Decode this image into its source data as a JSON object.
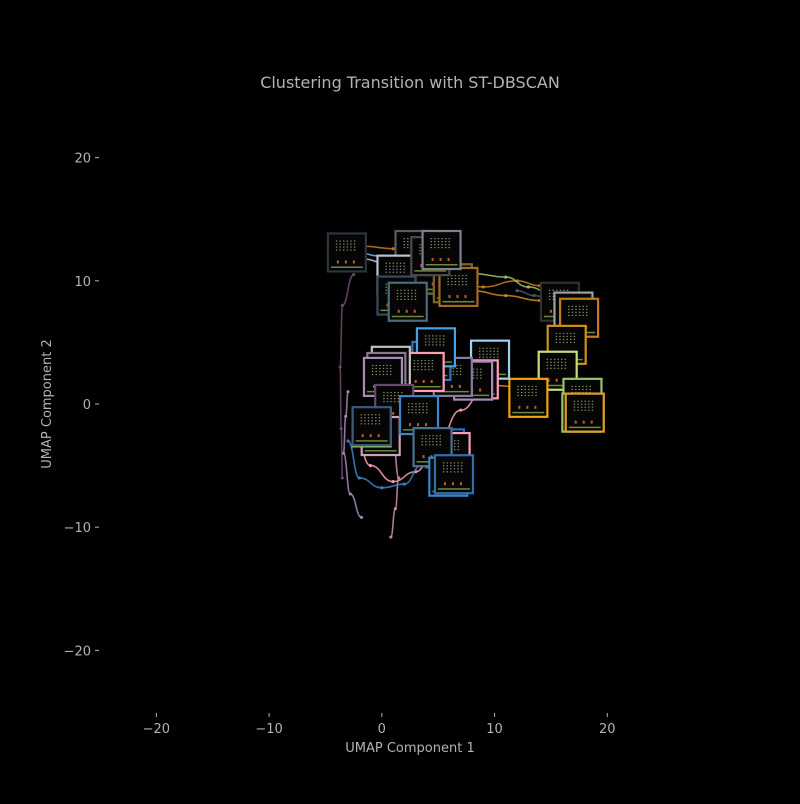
{
  "chart_data": {
    "type": "scatter",
    "title": "Clustering Transition with ST-DBSCAN",
    "xlabel": "UMAP Component 1",
    "ylabel": "UMAP Component 2",
    "xlim": [
      -25,
      30
    ],
    "ylim": [
      -25,
      25
    ],
    "xticks": [
      -20,
      -10,
      0,
      10,
      20
    ],
    "yticks": [
      -20,
      -10,
      0,
      10,
      20
    ],
    "xtick_labels": [
      "−20",
      "−10",
      "0",
      "10",
      "20"
    ],
    "ytick_labels": [
      "−20",
      "−10",
      "0",
      "10",
      "20"
    ],
    "grid": false,
    "background": "#000000",
    "text_color": "#b3b3b3",
    "tick_color": "#b3b3b3",
    "trajectories": [
      {
        "color": "#c27c1e",
        "points": [
          [
            -1.5,
            12.8
          ],
          [
            1,
            12.6
          ],
          [
            3,
            11.5
          ],
          [
            6,
            10
          ],
          [
            9,
            9.5
          ],
          [
            12,
            10
          ],
          [
            14,
            9.6
          ],
          [
            17,
            9.2
          ]
        ]
      },
      {
        "color": "#d18a1a",
        "points": [
          [
            2,
            9.8
          ],
          [
            5,
            9.6
          ],
          [
            8,
            9.2
          ],
          [
            11,
            8.8
          ],
          [
            14,
            8.4
          ],
          [
            16,
            7.5
          ]
        ]
      },
      {
        "color": "#9bc26a",
        "points": [
          [
            5,
            10.5
          ],
          [
            8,
            10.6
          ],
          [
            11,
            10.3
          ],
          [
            13,
            9.5
          ],
          [
            15,
            9
          ]
        ]
      },
      {
        "color": "#aec7e8",
        "points": [
          [
            -2,
            11.8
          ],
          [
            1,
            11.3
          ],
          [
            3,
            11
          ],
          [
            5,
            10.6
          ]
        ]
      },
      {
        "color": "#8cb0d4",
        "points": [
          [
            -3,
            12.5
          ],
          [
            0,
            12
          ],
          [
            2,
            11.2
          ],
          [
            4,
            10.2
          ]
        ]
      },
      {
        "color": "#e8833a",
        "points": [
          [
            8,
            1.6
          ],
          [
            10,
            1.5
          ],
          [
            12,
            1.4
          ],
          [
            14,
            1.2
          ]
        ]
      },
      {
        "color": "#f2a23c",
        "points": [
          [
            15,
            5.5
          ],
          [
            16.5,
            3
          ],
          [
            16.2,
            0.5
          ],
          [
            16.5,
            -1.5
          ]
        ]
      },
      {
        "color": "#ff9eb5",
        "points": [
          [
            -2.5,
            -2
          ],
          [
            -1,
            -5
          ],
          [
            1,
            -6.3
          ],
          [
            3,
            -5.5
          ],
          [
            5,
            -3
          ],
          [
            7,
            -0.5
          ],
          [
            9,
            1
          ]
        ]
      },
      {
        "color": "#d08fb0",
        "points": [
          [
            0.5,
            0
          ],
          [
            1,
            -3
          ],
          [
            1.5,
            -6
          ],
          [
            1.2,
            -8.5
          ],
          [
            0.8,
            -10.8
          ]
        ]
      },
      {
        "color": "#3a86c8",
        "points": [
          [
            -3,
            -3
          ],
          [
            -2,
            -6
          ],
          [
            0,
            -6.8
          ],
          [
            2,
            -6.5
          ],
          [
            3.5,
            -5
          ]
        ]
      },
      {
        "color": "#2e6fb0",
        "points": [
          [
            3,
            -2
          ],
          [
            4.5,
            -4
          ],
          [
            6,
            -5.5
          ],
          [
            7,
            -6.5
          ]
        ]
      },
      {
        "color": "#a78cb8",
        "points": [
          [
            -3,
            1
          ],
          [
            -3.2,
            -1
          ],
          [
            -3.4,
            -4
          ],
          [
            -2.8,
            -7.3
          ],
          [
            -1.8,
            -9.2
          ]
        ]
      },
      {
        "color": "#6e4b6e",
        "points": [
          [
            -2.5,
            10.5
          ],
          [
            -3.5,
            8
          ],
          [
            -3.7,
            3
          ],
          [
            -3.6,
            -2
          ],
          [
            -3.5,
            -6
          ]
        ]
      },
      {
        "color": "#4a5a6a",
        "points": [
          [
            12,
            9.2
          ],
          [
            13.5,
            8.8
          ],
          [
            15.5,
            8.2
          ],
          [
            17.5,
            7.6
          ]
        ]
      }
    ],
    "thumbnails": [
      {
        "x": -3.1,
        "y": 12.3,
        "border": "#2b3440"
      },
      {
        "x": 2.9,
        "y": 12.5,
        "border": "#5a5a6a"
      },
      {
        "x": 3.9,
        "y": 10.5,
        "border": "#6b6b3a"
      },
      {
        "x": 1.3,
        "y": 10.5,
        "border": "#c0c0d0"
      },
      {
        "x": 6.3,
        "y": 9.8,
        "border": "#7a6430"
      },
      {
        "x": 6.8,
        "y": 9.5,
        "border": "#a56a20"
      },
      {
        "x": 4.3,
        "y": 12.0,
        "border": "#4a4a4a"
      },
      {
        "x": 5.3,
        "y": 12.5,
        "border": "#7f7f8f"
      },
      {
        "x": 1.3,
        "y": 8.8,
        "border": "#3a4a5a"
      },
      {
        "x": 2.3,
        "y": 8.3,
        "border": "#4c6a7a"
      },
      {
        "x": 15.8,
        "y": 8.3,
        "border": "#303030"
      },
      {
        "x": 17.0,
        "y": 7.5,
        "border": "#a0a0a0"
      },
      {
        "x": 17.5,
        "y": 7.0,
        "border": "#c27c1e"
      },
      {
        "x": 16.4,
        "y": 4.8,
        "border": "#d0901a"
      },
      {
        "x": 15.6,
        "y": 2.7,
        "border": "#c5e07a"
      },
      {
        "x": 17.8,
        "y": 0.5,
        "border": "#9bc26a"
      },
      {
        "x": 17.7,
        "y": -0.7,
        "border": "#9bc26a"
      },
      {
        "x": 18.0,
        "y": -0.7,
        "border": "#e0a020"
      },
      {
        "x": 13.0,
        "y": 0.5,
        "border": "#f0a010"
      },
      {
        "x": 9.6,
        "y": 3.6,
        "border": "#a0d0f0"
      },
      {
        "x": 8.6,
        "y": 2.0,
        "border": "#ff9eb5"
      },
      {
        "x": 8.1,
        "y": 1.9,
        "border": "#a78cb8"
      },
      {
        "x": 6.3,
        "y": 2.2,
        "border": "#8c7aa0"
      },
      {
        "x": 4.4,
        "y": 3.5,
        "border": "#2a7ac0"
      },
      {
        "x": 4.8,
        "y": 4.6,
        "border": "#4aa0e0"
      },
      {
        "x": 3.8,
        "y": 2.6,
        "border": "#ff9eb5"
      },
      {
        "x": 0.8,
        "y": 3.1,
        "border": "#c0c0c0"
      },
      {
        "x": 0.4,
        "y": 2.6,
        "border": "#8a7a8a"
      },
      {
        "x": 0.1,
        "y": 2.2,
        "border": "#a78cb8"
      },
      {
        "x": 1.1,
        "y": 0.0,
        "border": "#6a4a6a"
      },
      {
        "x": -0.1,
        "y": -2.6,
        "border": "#d0a0c0"
      },
      {
        "x": -0.9,
        "y": -1.9,
        "border": "#9bc26a"
      },
      {
        "x": -0.9,
        "y": -1.8,
        "border": "#3a5a7a"
      },
      {
        "x": 3.3,
        "y": -0.9,
        "border": "#3a86c8"
      },
      {
        "x": 5.6,
        "y": -3.6,
        "border": "#2e6fb0"
      },
      {
        "x": 6.1,
        "y": -3.9,
        "border": "#ff9eb5"
      },
      {
        "x": 4.5,
        "y": -3.5,
        "border": "#4a7090"
      },
      {
        "x": 5.9,
        "y": -5.9,
        "border": "#3a86c8"
      },
      {
        "x": 6.4,
        "y": -5.7,
        "border": "#2e6fb0"
      }
    ]
  }
}
